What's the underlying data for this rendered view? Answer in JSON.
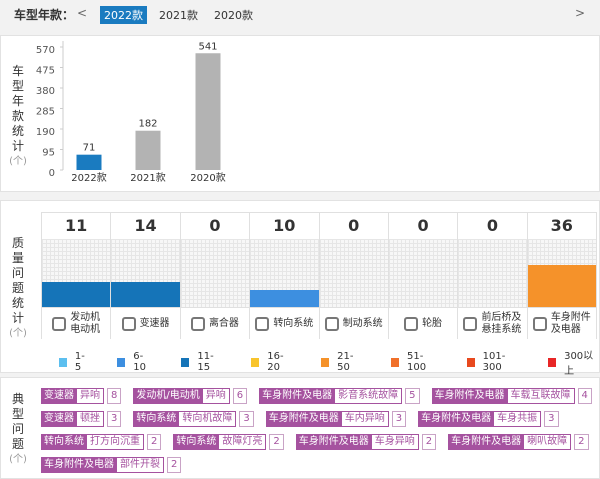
{
  "header": {
    "label": "车型年款：",
    "prev": "<",
    "tabs": [
      "2022款",
      "2021款",
      "2020款"
    ],
    "active_tab": 0,
    "next": ">"
  },
  "chart_data": [
    {
      "type": "bar",
      "title": "车型年款统计",
      "unit": "(个)",
      "categories": [
        "2022款",
        "2021款",
        "2020款"
      ],
      "values": [
        71,
        182,
        541
      ],
      "colors": [
        "#1a7bc0",
        "#b3b3b3",
        "#b3b3b3"
      ],
      "ylim": [
        0,
        570
      ],
      "yticks": [
        0,
        95,
        190,
        285,
        380,
        475,
        570
      ]
    },
    {
      "type": "bucket-bar",
      "title": "质量问题统计",
      "unit": "(个)",
      "categories": [
        "发动机电动机",
        "变速器",
        "离合器",
        "转向系统",
        "制动系统",
        "轮胎",
        "前后桥及悬挂系统",
        "车身附件及电器"
      ],
      "values": [
        11,
        14,
        0,
        10,
        0,
        0,
        0,
        36
      ],
      "legend": [
        {
          "label": "1-5",
          "color": "#5cbfef"
        },
        {
          "label": "6-10",
          "color": "#3d8fe0"
        },
        {
          "label": "11-15",
          "color": "#1574b8"
        },
        {
          "label": "16-20",
          "color": "#f8c42c"
        },
        {
          "label": "21-50",
          "color": "#f5922a"
        },
        {
          "label": "51-100",
          "color": "#f0702a"
        },
        {
          "label": "101-300",
          "color": "#e8491e"
        },
        {
          "label": "300以上",
          "color": "#e82626"
        }
      ]
    }
  ],
  "typical_issues": {
    "title": "典型问题",
    "unit": "(个)",
    "rows": [
      [
        {
          "system": "变速器",
          "issue": "异响",
          "count": 8
        },
        {
          "system": "发动机/电动机",
          "issue": "异响",
          "count": 6
        },
        {
          "system": "车身附件及电器",
          "issue": "影音系统故障",
          "count": 5
        },
        {
          "system": "车身附件及电器",
          "issue": "车载互联故障",
          "count": 4
        }
      ],
      [
        {
          "system": "变速器",
          "issue": "顿挫",
          "count": 3
        },
        {
          "system": "转向系统",
          "issue": "转向机故障",
          "count": 3
        },
        {
          "system": "车身附件及电器",
          "issue": "车内异响",
          "count": 3
        },
        {
          "system": "车身附件及电器",
          "issue": "车身共振",
          "count": 3
        }
      ],
      [
        {
          "system": "转向系统",
          "issue": "打方向沉重",
          "count": 2
        },
        {
          "system": "转向系统",
          "issue": "故障灯亮",
          "count": 2
        },
        {
          "system": "车身附件及电器",
          "issue": "车身异响",
          "count": 2
        },
        {
          "system": "车身附件及电器",
          "issue": "喇叭故障",
          "count": 2
        }
      ],
      [
        {
          "system": "车身附件及电器",
          "issue": "部件开裂",
          "count": 2
        }
      ]
    ]
  }
}
